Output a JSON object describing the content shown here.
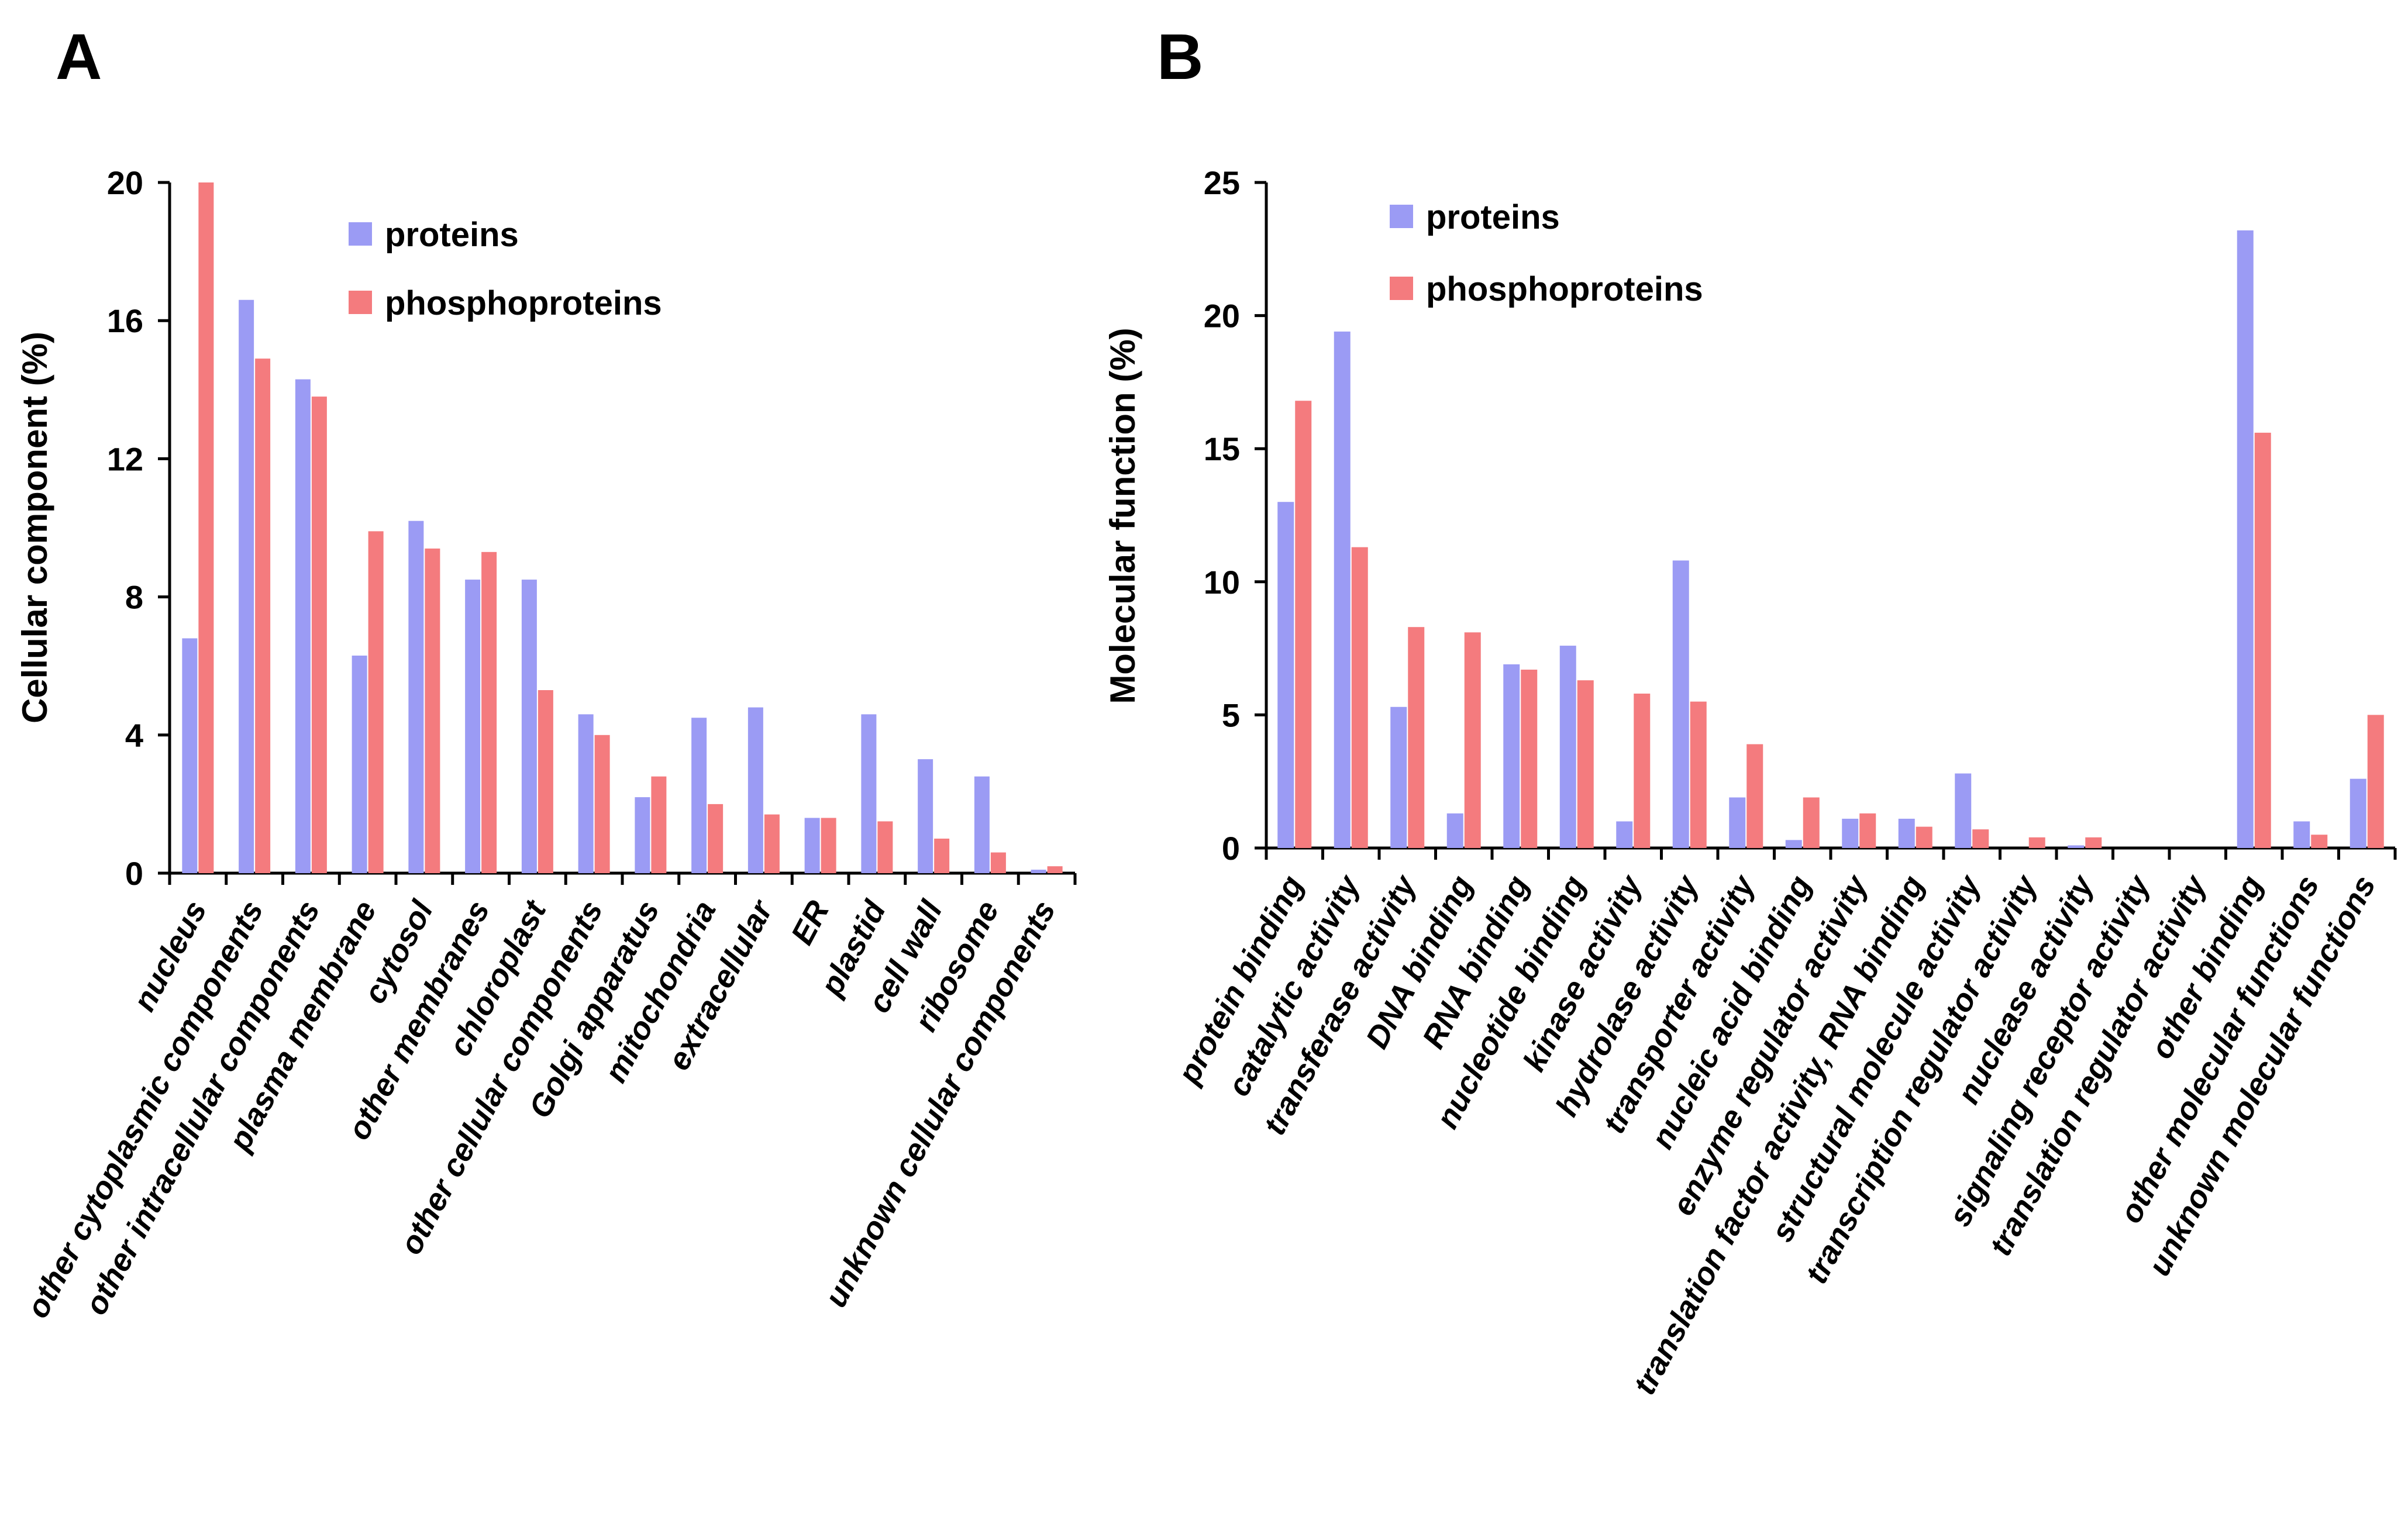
{
  "colors": {
    "proteins": "#9b9bf4",
    "phosphoproteins": "#f47b7e",
    "axis": "#000000"
  },
  "chart_data": [
    {
      "panel": "A",
      "type": "bar",
      "title": "",
      "xlabel": "",
      "ylabel": "Cellular component (%)",
      "ylim": [
        0,
        20
      ],
      "yticks": [
        "0",
        "4",
        "8",
        "12",
        "16",
        "20"
      ],
      "legend": "top-right",
      "categories": [
        "nucleus",
        "other cytoplasmic components",
        "other intracellular components",
        "plasma membrane",
        "cytosol",
        "other membranes",
        "chloroplast",
        "other cellular components",
        "Golgi apparatus",
        "mitochondria",
        "extracellular",
        "ER",
        "plastid",
        "cell wall",
        "ribosome",
        "unknown cellular components"
      ],
      "series": [
        {
          "name": "proteins",
          "values": [
            6.8,
            16.6,
            14.3,
            6.3,
            10.2,
            8.5,
            8.5,
            4.6,
            2.2,
            4.5,
            4.8,
            1.6,
            4.6,
            3.3,
            2.8,
            0.1
          ]
        },
        {
          "name": "phosphoproteins",
          "values": [
            20.0,
            14.9,
            13.8,
            9.9,
            9.4,
            9.3,
            5.3,
            4.0,
            2.8,
            2.0,
            1.7,
            1.6,
            1.5,
            1.0,
            0.6,
            0.2
          ]
        }
      ]
    },
    {
      "panel": "B",
      "type": "bar",
      "title": "",
      "xlabel": "",
      "ylabel": "Molecular function (%)",
      "ylim": [
        0,
        25
      ],
      "yticks": [
        "0",
        "5",
        "10",
        "15",
        "20",
        "25"
      ],
      "legend": "top-left",
      "categories": [
        "protein binding",
        "catalytic activity",
        "transferase activity",
        "DNA binding",
        "RNA binding",
        "nucleotide binding",
        "kinase activity",
        "hydrolase activity",
        "transporter activity",
        "nucleic acid binding",
        "enzyme regulator activity",
        "translation factor activity, RNA binding",
        "structural molecule activity",
        "transcription regulator activity",
        "nuclease activity",
        "signaling receptor activity",
        "translation regulator activity",
        "other binding",
        "other molecular functions",
        "unknown molecular functions"
      ],
      "series": [
        {
          "name": "proteins",
          "values": [
            13.0,
            19.4,
            5.3,
            1.3,
            6.9,
            7.6,
            1.0,
            10.8,
            1.9,
            0.3,
            1.1,
            1.1,
            2.8,
            0.0,
            0.1,
            0.0,
            0.0,
            23.2,
            1.0,
            2.6
          ]
        },
        {
          "name": "phosphoproteins",
          "values": [
            16.8,
            11.3,
            8.3,
            8.1,
            6.7,
            6.3,
            5.8,
            5.5,
            3.9,
            1.9,
            1.3,
            0.8,
            0.7,
            0.4,
            0.4,
            0.0,
            0.0,
            15.6,
            0.5,
            5.0
          ]
        }
      ]
    }
  ]
}
